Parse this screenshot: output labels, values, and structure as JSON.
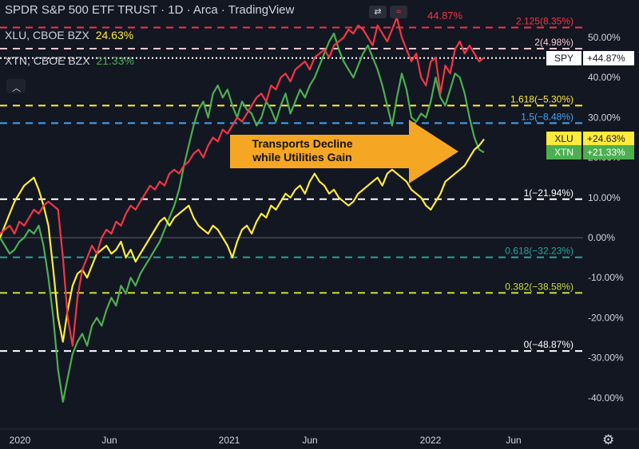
{
  "header": {
    "title": "SPDR S&P 500 ETF TRUST · 1D · Arca · TradingView",
    "symbol_rows": [
      {
        "label": "XLU, CBOE BZX",
        "value": "24.63%",
        "color": "#ffeb3b"
      },
      {
        "label": "XTN, CBOE BZX",
        "value": "21.33%",
        "color": "#4caf50"
      }
    ],
    "collapse_icon": "chevron-up-icon",
    "toolbar_icons": [
      "swap-icon",
      "compare-icon"
    ]
  },
  "peak_label": "44.87%",
  "annotation": {
    "line1": "Transports Decline",
    "line2": "while Utilities Gain",
    "color": "#f5a623"
  },
  "badges": [
    {
      "symbol": "SPY",
      "value": "+44.87%",
      "y": 44.87,
      "bg": "#ffffff",
      "fg": "#131722"
    },
    {
      "symbol": "XLU",
      "value": "+24.63%",
      "y": 24.63,
      "bg": "#ffeb3b",
      "fg": "#131722"
    },
    {
      "symbol": "XTN",
      "value": "+21.33%",
      "y": 21.33,
      "bg": "#4caf50",
      "fg": "#ffffff"
    }
  ],
  "settings_icon": "gear-icon",
  "chart_data": {
    "type": "line",
    "ylim": [
      -48,
      58
    ],
    "x_ticks": [
      "2020",
      "Jun",
      "2021",
      "Jun",
      "2022",
      "Jun"
    ],
    "y_ticks": [
      "50.00%",
      "40.00%",
      "30.00%",
      "20.00%",
      "10.00%",
      "0.00%",
      "-10.00%",
      "-20.00%",
      "-30.00%",
      "-40.00%"
    ],
    "y_tick_values": [
      50,
      40,
      30,
      20,
      10,
      0,
      -10,
      -20,
      -30,
      -40
    ],
    "fib_levels": [
      {
        "label": "2.125(8.35%)",
        "y": 52.5,
        "color": "#f23645",
        "style": "dashed"
      },
      {
        "label": "2(4.98%)",
        "y": 47.2,
        "color": "#f7c6cf",
        "style": "dashed"
      },
      {
        "label": "1.618(−5.30%)",
        "y": 33.0,
        "color": "#ffeb3b",
        "style": "dashed"
      },
      {
        "label": "1.5(−8.48%)",
        "y": 28.6,
        "color": "#42a5f5",
        "style": "dashed"
      },
      {
        "label": "1(−21.94%)",
        "y": 9.6,
        "color": "#ffffff",
        "style": "dashed"
      },
      {
        "label": "0.618(−32.23%)",
        "y": -4.9,
        "color": "#26a69a",
        "style": "dashed"
      },
      {
        "label": "0.382(−38.58%)",
        "y": -13.8,
        "color": "#cddc39",
        "style": "dashed"
      },
      {
        "label": "0(−48.87%)",
        "y": -28.3,
        "color": "#ffffff",
        "style": "dashed"
      }
    ],
    "spy_level": {
      "y": 44.87,
      "color": "#ffffff",
      "style": "dotted"
    },
    "zero_line": {
      "y": 0,
      "color": "#5d606b"
    },
    "series": [
      {
        "name": "SPY",
        "color": "#f23645",
        "x": [
          0,
          1,
          2,
          3,
          4,
          5,
          6,
          7,
          8,
          9,
          10,
          11,
          12,
          13,
          14,
          15,
          16,
          17,
          18,
          19,
          20,
          21,
          22,
          23,
          24,
          25,
          26,
          27,
          28,
          29,
          30,
          31,
          32,
          33,
          34,
          35,
          36,
          37,
          38,
          39,
          40,
          41,
          42,
          43,
          44,
          45,
          46,
          47,
          48,
          49,
          50,
          51,
          52,
          53,
          54,
          55,
          56,
          57,
          58,
          59,
          60,
          61,
          62,
          63,
          64,
          65,
          66,
          67,
          68,
          69,
          70,
          71,
          72,
          73,
          74,
          75,
          76,
          77,
          78,
          79,
          80,
          81,
          82,
          83,
          84,
          85,
          86,
          87,
          88,
          89,
          90,
          91,
          92,
          93,
          94,
          95,
          96,
          97,
          98,
          99,
          100
        ],
        "values": [
          1,
          2,
          3,
          1,
          4,
          3,
          5,
          7,
          6,
          8,
          9,
          8,
          7,
          -5,
          -20,
          -27,
          -15,
          -8,
          -5,
          -2,
          -4,
          0,
          2,
          1,
          4,
          3,
          6,
          8,
          7,
          9,
          11,
          13,
          12,
          14,
          13,
          16,
          17,
          16,
          18,
          19,
          21,
          22,
          20,
          23,
          25,
          24,
          27,
          26,
          28,
          30,
          29,
          31,
          33,
          35,
          36,
          34,
          38,
          37,
          40,
          41,
          39,
          42,
          43,
          44,
          42,
          45,
          46,
          47,
          45,
          48,
          49,
          50,
          52,
          51,
          53,
          52,
          50,
          48,
          53,
          51,
          49,
          52,
          55,
          50,
          47,
          44,
          46,
          40,
          38,
          44,
          45,
          36,
          43,
          41,
          47,
          49,
          46,
          48,
          46,
          44,
          45
        ]
      },
      {
        "name": "XLU",
        "color": "#ffeb3b",
        "x": [
          0,
          1,
          2,
          3,
          4,
          5,
          6,
          7,
          8,
          9,
          10,
          11,
          12,
          13,
          14,
          15,
          16,
          17,
          18,
          19,
          20,
          21,
          22,
          23,
          24,
          25,
          26,
          27,
          28,
          29,
          30,
          31,
          32,
          33,
          34,
          35,
          36,
          37,
          38,
          39,
          40,
          41,
          42,
          43,
          44,
          45,
          46,
          47,
          48,
          49,
          50,
          51,
          52,
          53,
          54,
          55,
          56,
          57,
          58,
          59,
          60,
          61,
          62,
          63,
          64,
          65,
          66,
          67,
          68,
          69,
          70,
          71,
          72,
          73,
          74,
          75,
          76,
          77,
          78,
          79,
          80,
          81,
          82,
          83,
          84,
          85,
          86,
          87,
          88,
          89,
          90,
          91,
          92,
          93,
          94,
          95,
          96,
          97,
          98,
          99,
          100
        ],
        "values": [
          0,
          3,
          6,
          9,
          11,
          13,
          14,
          15,
          12,
          8,
          3,
          -8,
          -20,
          -26,
          -18,
          -12,
          -9,
          -8,
          -10,
          -7,
          -4,
          -3,
          -2,
          -4,
          -3,
          -1,
          -5,
          -3,
          -6,
          -4,
          -2,
          0,
          2,
          4,
          5,
          3,
          5,
          6,
          7,
          8,
          5,
          3,
          2,
          1,
          3,
          2,
          0,
          -2,
          -5,
          -1,
          2,
          3,
          1,
          4,
          6,
          5,
          8,
          7,
          9,
          11,
          10,
          12,
          13,
          11,
          14,
          16,
          14,
          13,
          11,
          12,
          10,
          9,
          8,
          9,
          11,
          12,
          13,
          14,
          15,
          13,
          16,
          17,
          16,
          15,
          14,
          12,
          11,
          10,
          8,
          7,
          9,
          11,
          14,
          15,
          16,
          17,
          18,
          20,
          22,
          23,
          24.6
        ]
      },
      {
        "name": "XTN",
        "color": "#4caf50",
        "x": [
          0,
          1,
          2,
          3,
          4,
          5,
          6,
          7,
          8,
          9,
          10,
          11,
          12,
          13,
          14,
          15,
          16,
          17,
          18,
          19,
          20,
          21,
          22,
          23,
          24,
          25,
          26,
          27,
          28,
          29,
          30,
          31,
          32,
          33,
          34,
          35,
          36,
          37,
          38,
          39,
          40,
          41,
          42,
          43,
          44,
          45,
          46,
          47,
          48,
          49,
          50,
          51,
          52,
          53,
          54,
          55,
          56,
          57,
          58,
          59,
          60,
          61,
          62,
          63,
          64,
          65,
          66,
          67,
          68,
          69,
          70,
          71,
          72,
          73,
          74,
          75,
          76,
          77,
          78,
          79,
          80,
          81,
          82,
          83,
          84,
          85,
          86,
          87,
          88,
          89,
          90,
          91,
          92,
          93,
          94,
          95,
          96,
          97,
          98,
          99,
          100
        ],
        "values": [
          0,
          -2,
          -4,
          -3,
          -1,
          0,
          2,
          1,
          3,
          -2,
          -10,
          -20,
          -33,
          -41,
          -35,
          -29,
          -26,
          -24,
          -27,
          -22,
          -20,
          -22,
          -18,
          -15,
          -17,
          -12,
          -14,
          -10,
          -12,
          -9,
          -7,
          -5,
          -3,
          -1,
          2,
          5,
          8,
          12,
          18,
          23,
          28,
          32,
          34,
          30,
          36,
          38,
          35,
          37,
          33,
          30,
          34,
          32,
          31,
          28,
          30,
          34,
          32,
          29,
          33,
          36,
          31,
          34,
          37,
          35,
          38,
          40,
          43,
          46,
          49,
          51,
          47,
          44,
          42,
          40,
          43,
          46,
          48,
          45,
          42,
          38,
          33,
          28,
          35,
          41,
          37,
          30,
          29,
          31,
          30,
          34,
          40,
          35,
          33,
          37,
          41,
          40,
          36,
          30,
          25,
          22,
          21.3
        ]
      }
    ]
  }
}
